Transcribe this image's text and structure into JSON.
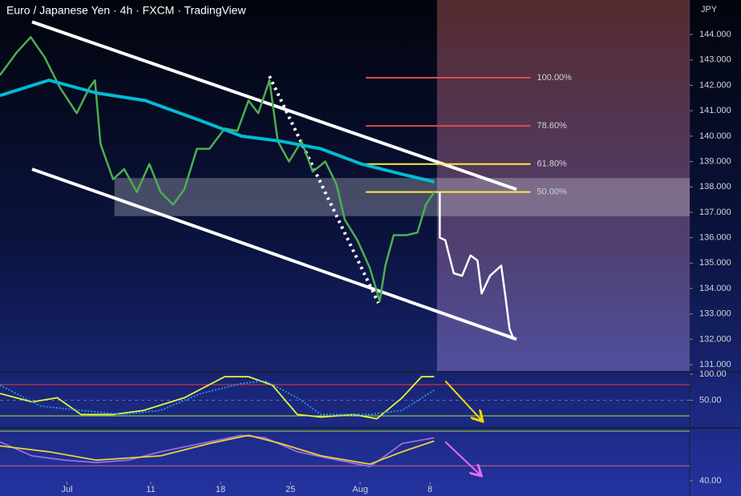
{
  "chart_data": [
    {
      "type": "line",
      "title": "Euro / Japanese Yen · 4h · FXCM · TradingView",
      "y_axis_label": "JPY",
      "xlim": [
        -4.8,
        44.6
      ],
      "ylim": [
        130.75,
        145.36
      ],
      "xticks": [
        {
          "value": 0,
          "label": "Jul"
        },
        {
          "value": 6,
          "label": "11"
        },
        {
          "value": 11,
          "label": "18"
        },
        {
          "value": 16,
          "label": "25"
        },
        {
          "value": 21,
          "label": "Aug"
        },
        {
          "value": 26,
          "label": "8"
        }
      ],
      "yticks": [
        {
          "value": 131,
          "label": "131.000"
        },
        {
          "value": 132,
          "label": "132.000"
        },
        {
          "value": 133,
          "label": "133.000"
        },
        {
          "value": 134,
          "label": "134.000"
        },
        {
          "value": 135,
          "label": "135.000"
        },
        {
          "value": 136,
          "label": "136.000"
        },
        {
          "value": 137,
          "label": "137.000"
        },
        {
          "value": 138,
          "label": "138.000"
        },
        {
          "value": 139,
          "label": "139.000"
        },
        {
          "value": 140,
          "label": "140.000"
        },
        {
          "value": 141,
          "label": "141.000"
        },
        {
          "value": 142,
          "label": "142.000"
        },
        {
          "value": 143,
          "label": "143.000"
        },
        {
          "value": 144,
          "label": "144.000"
        }
      ],
      "series": [
        {
          "name": "Price",
          "color": "#4caf50",
          "x": [
            -4.8,
            -3.6,
            -2.6,
            -1.6,
            -0.5,
            0.7,
            1.6,
            2.0,
            2.4,
            3.3,
            4.1,
            5.0,
            5.9,
            6.7,
            7.6,
            8.4,
            9.3,
            10.2,
            11.3,
            12.2,
            13.0,
            13.7,
            14.5,
            15.1,
            15.9,
            16.8,
            17.6,
            18.5,
            19.3,
            19.9,
            20.8,
            21.7,
            22.4,
            22.8,
            23.4,
            24.3,
            25.1,
            25.7,
            26.3
          ],
          "values": [
            142.4,
            143.3,
            143.9,
            143.1,
            141.9,
            140.9,
            141.9,
            142.2,
            139.7,
            138.3,
            138.7,
            137.8,
            138.9,
            137.8,
            137.3,
            137.9,
            139.5,
            139.5,
            140.3,
            140.2,
            141.4,
            140.9,
            142.2,
            139.8,
            139.0,
            139.8,
            138.6,
            139.0,
            138.1,
            136.7,
            135.9,
            134.8,
            133.5,
            134.9,
            136.1,
            136.1,
            136.2,
            137.3,
            137.8
          ]
        },
        {
          "name": "Moving Average",
          "color": "#00bcd4",
          "x": [
            -4.8,
            -1.3,
            2.1,
            5.6,
            9.6,
            12.5,
            15.3,
            18.2,
            21.1,
            24.0,
            26.3
          ],
          "values": [
            141.6,
            142.2,
            141.7,
            141.4,
            140.6,
            140.0,
            139.8,
            139.5,
            138.9,
            138.5,
            138.2
          ]
        },
        {
          "name": "Projection",
          "color": "#ffffff",
          "x": [
            26.7,
            26.7,
            27.1,
            27.7,
            28.3,
            28.9,
            29.4,
            29.7,
            30.3,
            31.1,
            31.4,
            31.7,
            32.0
          ],
          "values": [
            137.8,
            136.0,
            135.9,
            134.6,
            134.5,
            135.3,
            135.1,
            133.8,
            134.5,
            134.9,
            133.7,
            132.4,
            132.0
          ]
        }
      ],
      "trendlines": [
        {
          "x": [
            -2.5,
            32.2
          ],
          "y": [
            144.5,
            137.9
          ],
          "color": "#ffffff"
        },
        {
          "x": [
            -2.5,
            32.2
          ],
          "y": [
            138.7,
            132.0
          ],
          "color": "#ffffff"
        }
      ],
      "dotted_line": {
        "x": [
          14.5,
          22.3
        ],
        "y": [
          142.36,
          133.43
        ],
        "color": "#ffffff"
      },
      "fib_x": [
        21.4,
        33.2
      ],
      "fib_levels": [
        {
          "label": "100.00%",
          "value": 142.3,
          "color": "#e5484d"
        },
        {
          "label": "78.60%",
          "value": 140.4,
          "color": "#e5484d"
        },
        {
          "label": "61.80%",
          "value": 138.9,
          "color": "#ffeb3b"
        },
        {
          "label": "50.00%",
          "value": 137.8,
          "color": "#ffeb3b"
        }
      ],
      "zone": {
        "x": [
          3.4,
          44.6
        ],
        "y": [
          136.85,
          138.35
        ],
        "color": "#ffffff"
      },
      "shaded_region_x": [
        26.5,
        44.6
      ]
    },
    {
      "type": "line",
      "xlim": [
        -4.8,
        44.6
      ],
      "ylim": [
        0,
        103
      ],
      "yticks": [
        {
          "value": 100,
          "label": "100.00"
        },
        {
          "value": 50,
          "label": "50.00"
        }
      ],
      "levels": [
        {
          "value": 80,
          "color": "#f23645"
        },
        {
          "value": 50,
          "color": "#5d6fa8"
        },
        {
          "value": 20,
          "color": "#a4e22b"
        }
      ],
      "series": [
        {
          "name": "K",
          "color": "#e8f53a",
          "x": [
            -4.8,
            -2.5,
            -0.7,
            1.0,
            3.3,
            5.5,
            8.4,
            11.3,
            13.0,
            14.7,
            16.5,
            18.2,
            20.5,
            22.2,
            24.0,
            25.4,
            26.3
          ],
          "values": [
            62.9,
            46.8,
            54.8,
            22.6,
            22.6,
            30.6,
            54.8,
            95.2,
            95.2,
            79,
            22.6,
            17.7,
            22.6,
            14.5,
            54.8,
            95.2,
            95.2
          ]
        },
        {
          "name": "D",
          "color": "#2196f3",
          "dashed": true,
          "x": [
            -4.8,
            -1.9,
            1.0,
            3.9,
            6.7,
            9.6,
            12.5,
            14.2,
            16.5,
            18.2,
            21.7,
            24.0,
            26.3
          ],
          "values": [
            79,
            38.7,
            30.6,
            22.6,
            30.6,
            62.9,
            82.3,
            87.1,
            54.8,
            22.6,
            22.6,
            30.6,
            69.4
          ]
        }
      ],
      "arrow": {
        "x": [
          27.1,
          29.7
        ],
        "y": [
          87,
          11.3
        ],
        "color": "#f5d90a"
      }
    },
    {
      "type": "line",
      "xlim": [
        -4.8,
        44.6
      ],
      "ylim": [
        37.5,
        71.5
      ],
      "yticks": [
        {
          "value": 40,
          "label": "40.00"
        }
      ],
      "levels": [
        {
          "value": 70.5,
          "color": "#a4e22b"
        },
        {
          "value": 49.2,
          "color": "#e05a8a"
        }
      ],
      "series": [
        {
          "name": "RSI",
          "color": "#9c6ade",
          "x": [
            -4.8,
            -2.5,
            -0.2,
            2.1,
            4.4,
            6.7,
            9.6,
            12.5,
            14.2,
            16.5,
            19.4,
            21.7,
            22.8,
            24.0,
            26.3
          ],
          "values": [
            63.9,
            55.3,
            52.7,
            51.2,
            52.7,
            57.8,
            62.9,
            67.9,
            66.4,
            57.8,
            52.7,
            48.7,
            55.3,
            62.9,
            66.4
          ]
        },
        {
          "name": "Signal",
          "color": "#e8d43a",
          "x": [
            -4.8,
            -1.3,
            2.1,
            6.7,
            10.2,
            13.0,
            15.3,
            18.2,
            21.7,
            24.0,
            26.3
          ],
          "values": [
            61.4,
            57.8,
            52.7,
            55.3,
            62.9,
            67.9,
            62.9,
            55.3,
            50.2,
            57.8,
            64.4
          ]
        }
      ],
      "arrow": {
        "x": [
          27.1,
          29.6
        ],
        "y": [
          63.9,
          43.6
        ],
        "color": "#e66cf0"
      }
    }
  ]
}
